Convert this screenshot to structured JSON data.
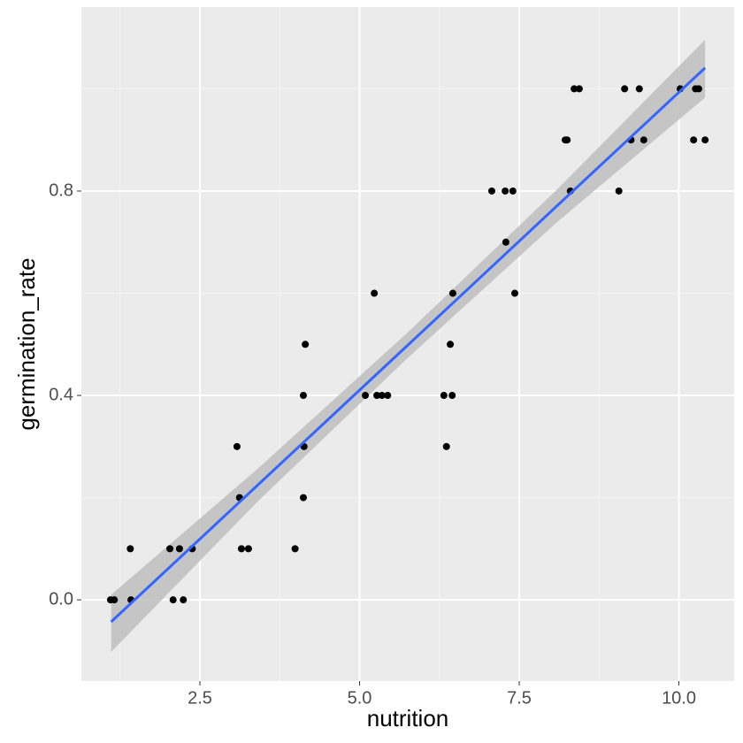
{
  "chart_data": {
    "type": "scatter",
    "x_label": "nutrition",
    "y_label": "germination_rate",
    "x": [
      1.1,
      1.16,
      1.41,
      1.42,
      2.03,
      2.08,
      2.18,
      2.24,
      2.38,
      3.08,
      3.12,
      3.15,
      3.26,
      3.99,
      4.12,
      4.13,
      4.12,
      4.15,
      5.09,
      5.23,
      5.27,
      5.35,
      5.44,
      6.32,
      6.36,
      6.42,
      6.45,
      6.46,
      7.07,
      7.28,
      7.29,
      7.4,
      7.43,
      8.22,
      8.25,
      8.3,
      8.36,
      8.44,
      9.06,
      9.15,
      9.25,
      9.38,
      9.45,
      10.02,
      10.23,
      10.26,
      10.31,
      10.41
    ],
    "y": [
      0,
      0,
      0.1,
      0,
      0.1,
      0,
      0.1,
      0,
      0.1,
      0.3,
      0.2,
      0.1,
      0.1,
      0.1,
      0.2,
      0.3,
      0.4,
      0.5,
      0.4,
      0.6,
      0.4,
      0.4,
      0.4,
      0.4,
      0.3,
      0.5,
      0.4,
      0.6,
      0.8,
      0.8,
      0.7,
      0.8,
      0.6,
      0.9,
      0.9,
      0.8,
      1.0,
      1.0,
      0.8,
      1.0,
      0.9,
      1.0,
      0.9,
      1.0,
      0.9,
      1.0,
      1.0,
      0.9
    ],
    "color": "#000000",
    "smooth": {
      "color": "#3366ff",
      "band_color": "#bebebe",
      "x": [
        1.11,
        3.4,
        5.76,
        8.1,
        10.41
      ],
      "y": [
        -0.043,
        0.224,
        0.499,
        0.772,
        1.041
      ],
      "lower": [
        -0.102,
        0.192,
        0.474,
        0.74,
        0.983
      ],
      "upper": [
        0.01,
        0.256,
        0.524,
        0.804,
        1.096
      ]
    },
    "xlim": [
      0.644,
      10.865
    ],
    "ylim": [
      -0.159,
      1.16
    ],
    "xticks": [
      2.5,
      {
        "value": 5,
        "label": "5.0"
      },
      7.5,
      {
        "value": 10,
        "label": "10.0"
      }
    ],
    "yticks": [
      {
        "value": 0,
        "label": "0.0"
      },
      0.4,
      0.8
    ],
    "grid": true
  }
}
